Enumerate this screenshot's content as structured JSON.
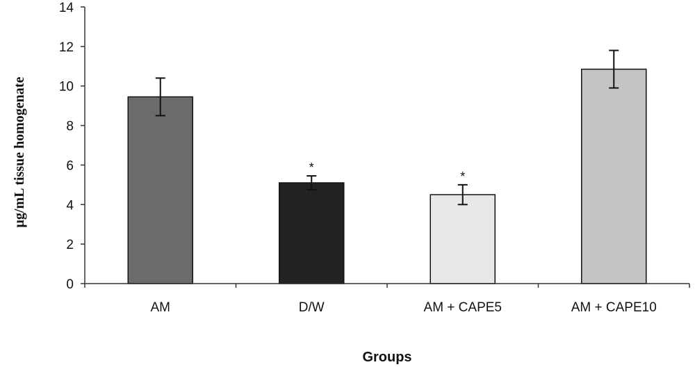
{
  "chart_data": {
    "type": "bar",
    "categories": [
      "AM",
      "D/W",
      "AM + CAPE5",
      "AM + CAPE10"
    ],
    "values": [
      9.45,
      5.1,
      4.5,
      10.85
    ],
    "error": [
      0.95,
      0.35,
      0.5,
      0.95
    ],
    "annotations": [
      "",
      "*",
      "*",
      ""
    ],
    "bar_colors": [
      "#6b6b6b",
      "#222222",
      "#e8e8e8",
      "#c4c4c4"
    ],
    "xlabel": "Groups",
    "ylabel": "μg/mL tissue homogenate",
    "ylim": [
      0,
      14
    ],
    "yticks": [
      0,
      2,
      4,
      6,
      8,
      10,
      12,
      14
    ],
    "grid": false,
    "legend": "none"
  }
}
